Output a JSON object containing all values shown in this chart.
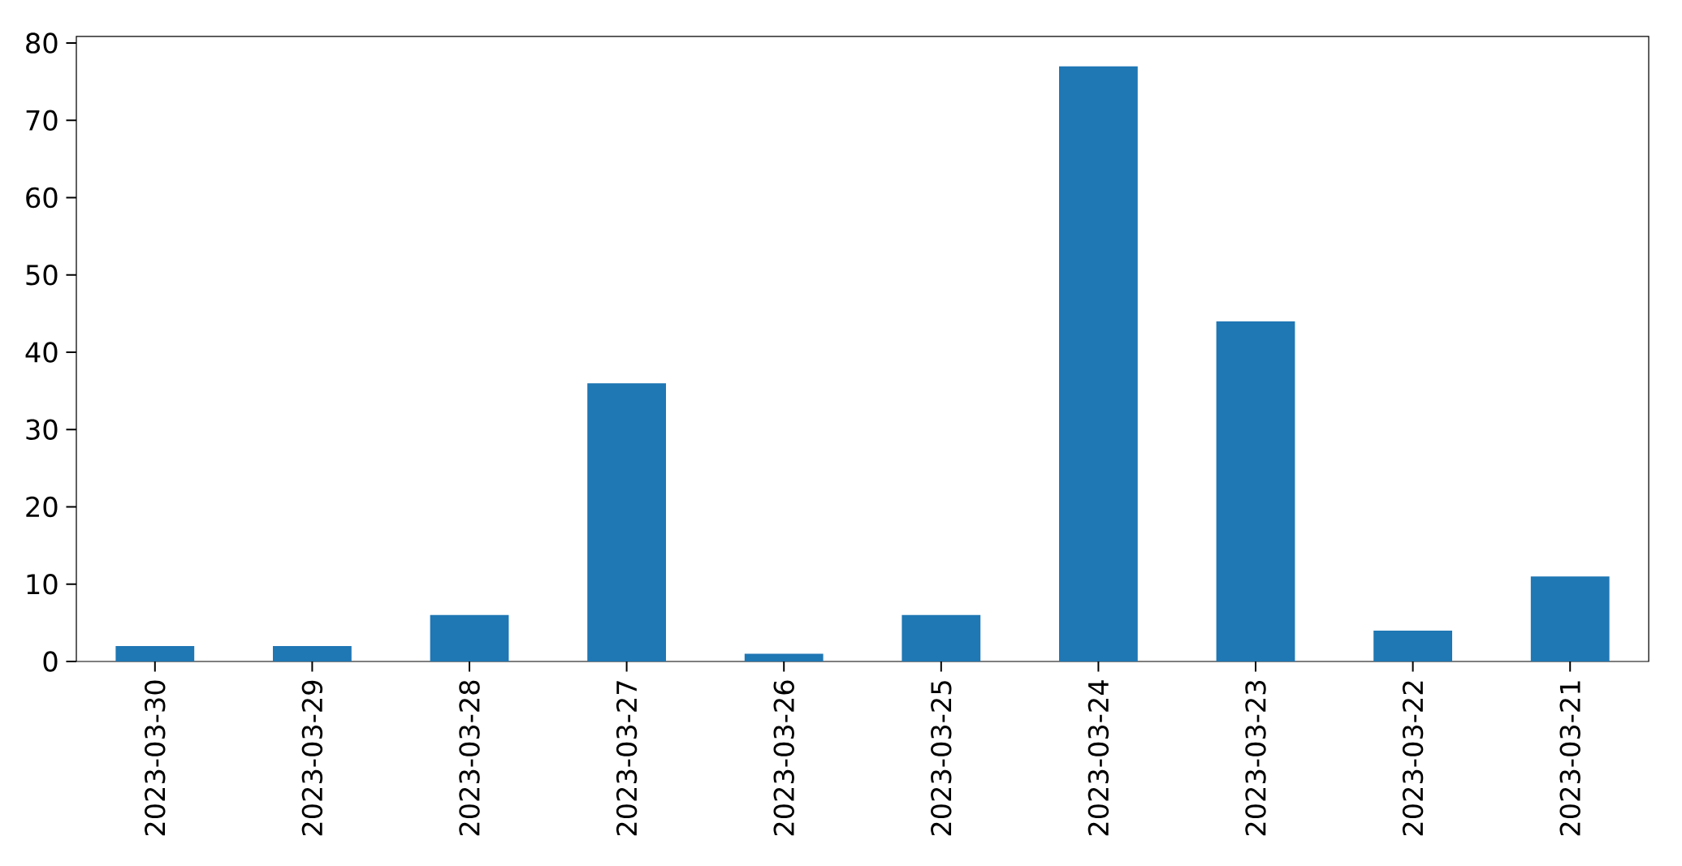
{
  "chart_data": {
    "type": "bar",
    "categories": [
      "2023-03-30",
      "2023-03-29",
      "2023-03-28",
      "2023-03-27",
      "2023-03-26",
      "2023-03-25",
      "2023-03-24",
      "2023-03-23",
      "2023-03-22",
      "2023-03-21"
    ],
    "values": [
      2,
      2,
      6,
      36,
      1,
      6,
      77,
      44,
      4,
      11
    ],
    "color": "#1f77b4",
    "ylim": [
      0,
      80.85
    ],
    "yticks": [
      0,
      10,
      20,
      30,
      40,
      50,
      60,
      70,
      80
    ]
  }
}
